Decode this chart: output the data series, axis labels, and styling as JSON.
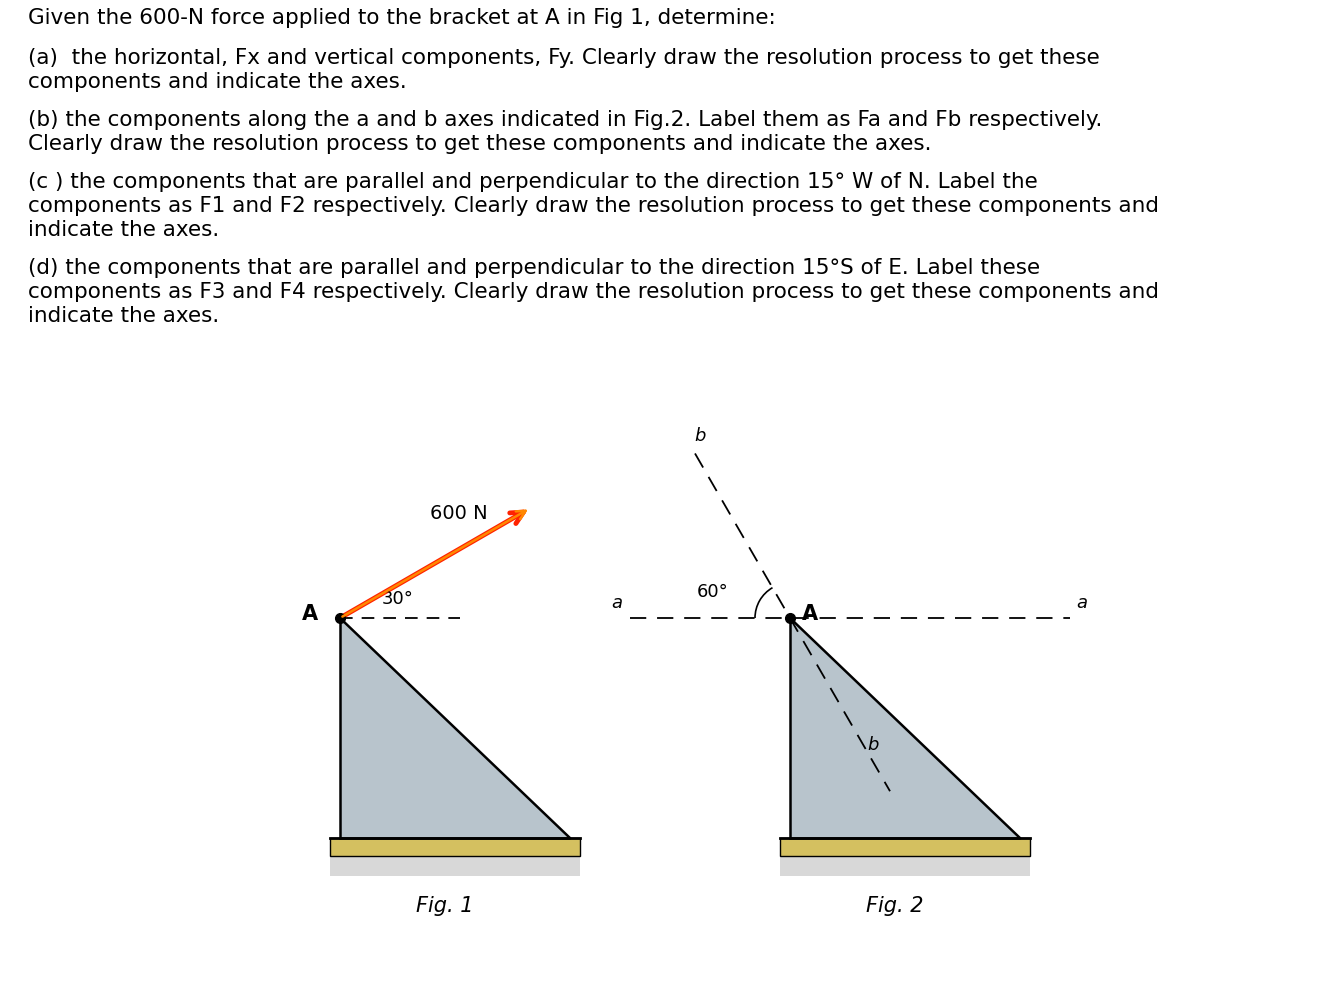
{
  "bg_color": "#ffffff",
  "text_color": "#000000",
  "title_line": "Given the 600-N force applied to the bracket at A in Fig 1, determine:",
  "para_a": "(a)  the horizontal, Fx and vertical components, Fy. Clearly draw the resolution process to get these\ncomponents and indicate the axes.",
  "para_b": "(b) the components along the a and b axes indicated in Fig.2. Label them as Fa and Fb respectively.\nClearly draw the resolution process to get these components and indicate the axes.",
  "para_c": "(͜c ) the components that are parallel and perpendicular to the direction 15° W of N. Label the\ncomponents as F1 and F2 respectively. Clearly draw the resolution process to get these components and\nindicate the axes.",
  "para_d": "(d) the components that are parallel and perpendicular to the direction 15°S of E. Label these\ncomponents as F3 and F4 respectively. Clearly draw the resolution process to get these components and\nindicate the axes.",
  "fig1_caption": "Fig. 1",
  "fig2_caption": "Fig. 2",
  "bracket_fill": "#b8c4cc",
  "bracket_edge": "#000000",
  "ground_color": "#d4c060",
  "shadow_color": "#d8d8d8",
  "arrow_color1": "#ff2200",
  "arrow_color2": "#ff8800",
  "dashed_color": "#000000"
}
